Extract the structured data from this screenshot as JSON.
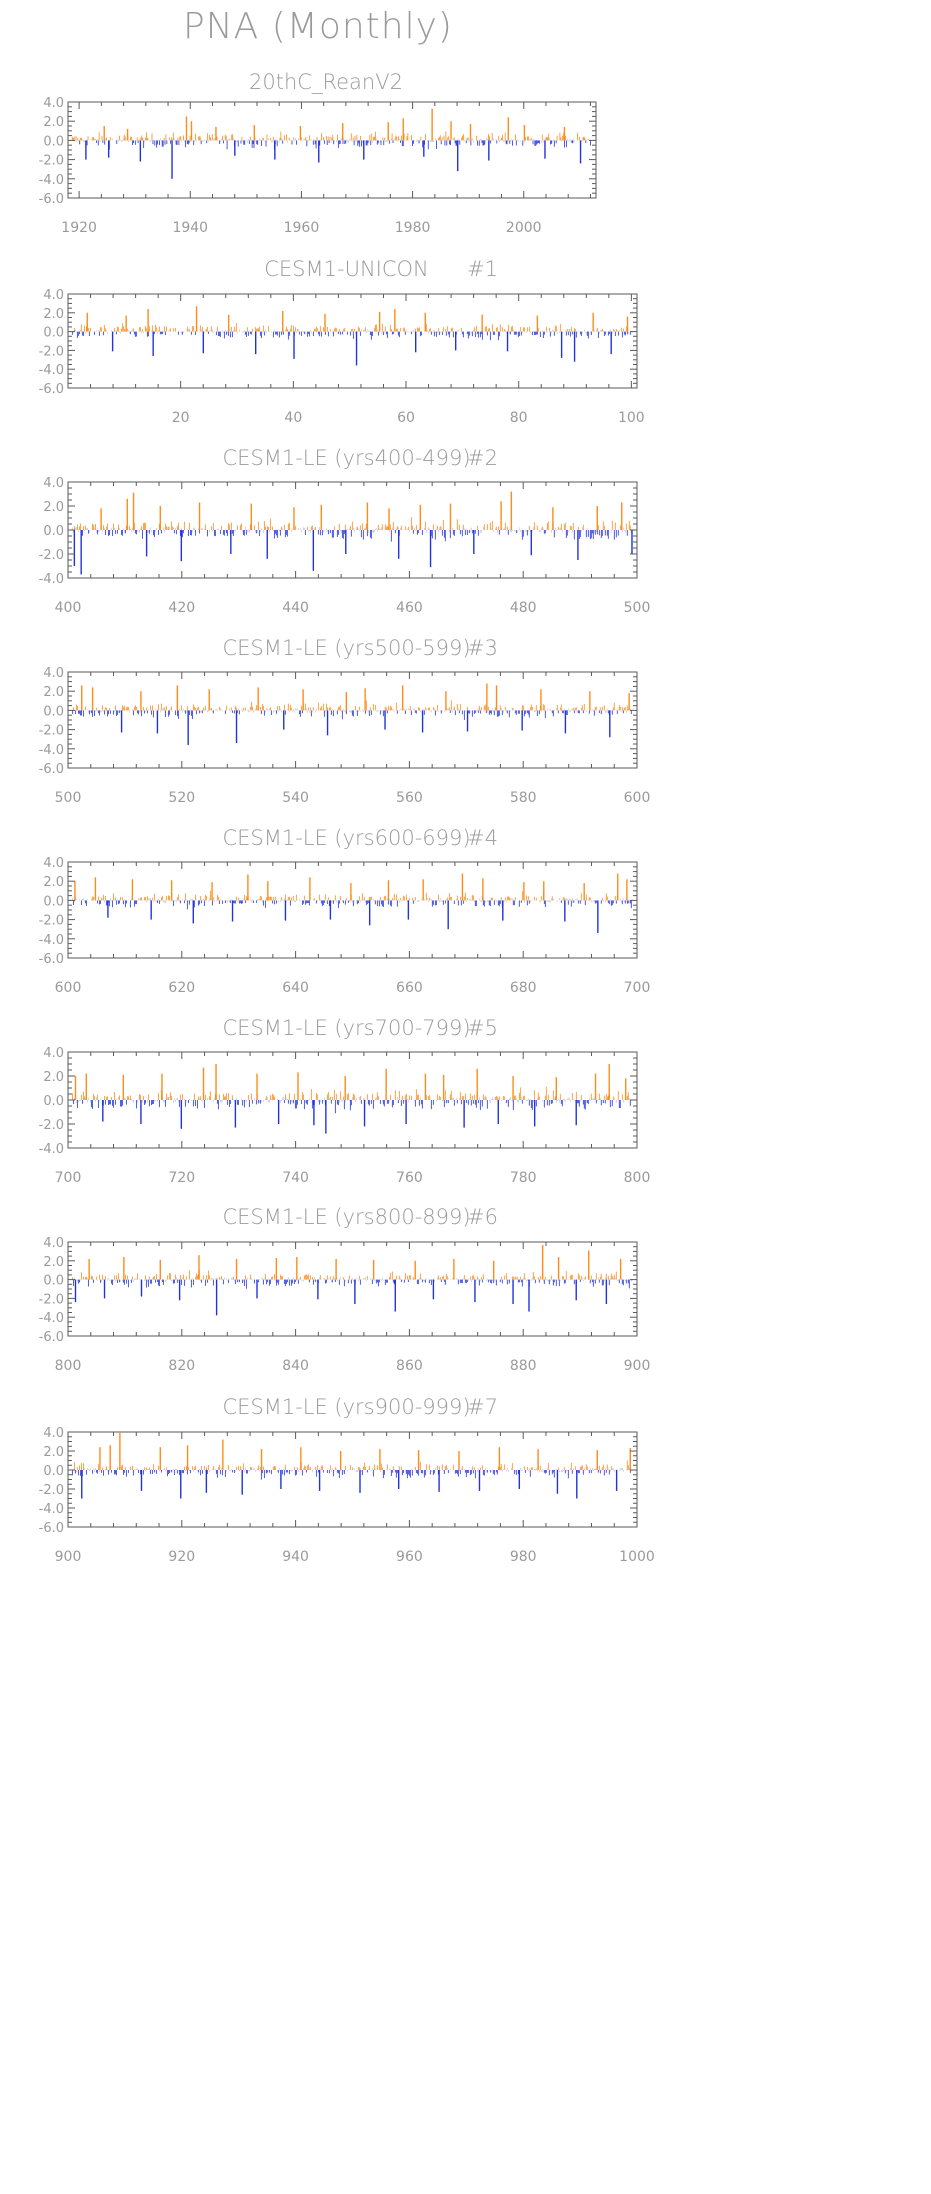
{
  "title": "PNA (Monthly)",
  "colors": {
    "positive": "#ff8c1a",
    "negative": "#2233dd",
    "weak": "#c8c8c8",
    "text": "#9a9a9a",
    "frame": "#5a5a5a"
  },
  "chart_data": [
    {
      "type": "bar",
      "title": "20thC_ReanV2",
      "ensemble_label": "",
      "xlim": [
        1918,
        2013
      ],
      "ylim": [
        -6.0,
        4.0
      ],
      "yticks": [
        "4.0",
        "2.0",
        "0.0",
        "-2.0",
        "-4.0",
        "-6.0"
      ],
      "xticks": [
        "1920",
        "1940",
        "1960",
        "1980",
        "2000"
      ],
      "series": [
        {
          "name": "",
          "x": [
            1921.2,
            1924.5,
            1925.3,
            1928.7,
            1931.0,
            1936.7,
            1939.3,
            1940.2,
            1944.6,
            1948.0,
            1951.5,
            1955.2,
            1959.8,
            1963.1,
            1967.4,
            1971.2,
            1975.6,
            1978.3,
            1982.0,
            1983.5,
            1986.9,
            1988.1,
            1990.4,
            1993.7,
            1997.2,
            2000.1,
            2003.8,
            2007.3,
            2010.2
          ],
          "values": [
            -2.0,
            1.5,
            -1.8,
            1.2,
            -2.2,
            -4.0,
            2.5,
            2.0,
            1.4,
            -1.6,
            1.6,
            -2.0,
            1.5,
            -2.3,
            1.8,
            -2.0,
            1.9,
            2.3,
            -1.7,
            3.3,
            2.0,
            -3.2,
            1.7,
            -2.1,
            2.4,
            1.6,
            -1.9,
            1.4,
            -2.4
          ]
        }
      ]
    },
    {
      "type": "bar",
      "title": "CESM1-UNICON",
      "ensemble_label": "#1",
      "xlim": [
        0,
        101
      ],
      "ylim": [
        -6.0,
        4.0
      ],
      "yticks": [
        "4.0",
        "2.0",
        "0.0",
        "-2.0",
        "-4.0",
        "-6.0"
      ],
      "xticks": [
        "20",
        "40",
        "60",
        "80",
        "100"
      ],
      "series": [
        {
          "name": "",
          "x": [
            3.4,
            7.9,
            10.3,
            14.2,
            15.1,
            22.8,
            24.0,
            28.5,
            33.3,
            38.1,
            40.1,
            45.6,
            51.2,
            55.3,
            58.0,
            61.7,
            63.4,
            68.8,
            73.5,
            78.0,
            83.3,
            87.6,
            89.9,
            93.2,
            96.4,
            99.3
          ],
          "values": [
            2.0,
            -2.1,
            1.7,
            2.4,
            -2.6,
            2.7,
            -2.3,
            1.8,
            -2.4,
            2.2,
            -2.9,
            1.9,
            -3.6,
            2.1,
            2.4,
            -2.2,
            2.0,
            -2.0,
            1.8,
            -2.1,
            1.7,
            -2.8,
            -3.2,
            2.0,
            -2.4,
            1.6
          ]
        }
      ]
    },
    {
      "type": "bar",
      "title": "CESM1-LE (yrs400-499)",
      "ensemble_label": "#2",
      "xlim": [
        400,
        500
      ],
      "ylim": [
        -4.0,
        4.0
      ],
      "yticks": [
        "4.0",
        "2.0",
        "0.0",
        "-2.0",
        "-4.0"
      ],
      "xticks": [
        "400",
        "420",
        "440",
        "460",
        "480",
        "500"
      ],
      "series": [
        {
          "name": "",
          "x": [
            401.1,
            402.3,
            405.8,
            410.4,
            411.5,
            413.8,
            416.2,
            419.9,
            423.1,
            428.6,
            432.2,
            435.0,
            439.7,
            443.1,
            444.5,
            448.8,
            452.6,
            456.4,
            458.1,
            461.9,
            463.7,
            467.2,
            471.3,
            476.1,
            477.9,
            481.4,
            485.2,
            489.6,
            493.0,
            497.3,
            499.1
          ],
          "values": [
            -3.0,
            -3.7,
            1.8,
            2.6,
            3.1,
            -2.2,
            2.0,
            -2.6,
            2.3,
            -2.0,
            2.2,
            -2.4,
            1.9,
            -3.4,
            2.1,
            -2.0,
            2.3,
            1.8,
            -2.4,
            2.1,
            -3.1,
            2.2,
            -2.0,
            2.4,
            3.2,
            -2.1,
            1.9,
            -2.5,
            2.0,
            2.3,
            -2.0
          ]
        }
      ]
    },
    {
      "type": "bar",
      "title": "CESM1-LE (yrs500-599)",
      "ensemble_label": "#3",
      "xlim": [
        500,
        600
      ],
      "ylim": [
        -6.0,
        4.0
      ],
      "yticks": [
        "4.0",
        "2.0",
        "0.0",
        "-2.0",
        "-4.0",
        "-6.0"
      ],
      "xticks": [
        "500",
        "520",
        "540",
        "560",
        "580",
        "600"
      ],
      "series": [
        {
          "name": "",
          "x": [
            502.4,
            504.3,
            509.4,
            512.8,
            515.7,
            519.2,
            521.1,
            524.8,
            529.6,
            533.4,
            537.9,
            541.3,
            545.6,
            548.9,
            552.2,
            555.7,
            558.8,
            562.3,
            566.4,
            570.2,
            573.6,
            575.3,
            579.8,
            583.1,
            587.4,
            591.7,
            595.2,
            598.6
          ],
          "values": [
            2.6,
            2.4,
            -2.3,
            2.0,
            -2.4,
            2.6,
            -3.6,
            2.2,
            -3.4,
            2.4,
            -2.0,
            2.2,
            -2.6,
            1.9,
            2.3,
            -2.0,
            2.6,
            -2.3,
            2.0,
            -2.2,
            2.8,
            2.6,
            -2.1,
            2.2,
            -2.4,
            2.0,
            -2.8,
            1.8
          ]
        }
      ]
    },
    {
      "type": "bar",
      "title": "CESM1-LE (yrs600-699)",
      "ensemble_label": "#4",
      "xlim": [
        600,
        700
      ],
      "ylim": [
        -6.0,
        4.0
      ],
      "yticks": [
        "4.0",
        "2.0",
        "0.0",
        "-2.0",
        "-4.0",
        "-6.0"
      ],
      "xticks": [
        "600",
        "620",
        "640",
        "660",
        "680",
        "700"
      ],
      "series": [
        {
          "name": "",
          "x": [
            601.2,
            604.8,
            607.0,
            611.3,
            614.6,
            618.2,
            622.0,
            625.3,
            628.9,
            631.6,
            635.1,
            638.2,
            642.5,
            646.1,
            649.7,
            653.0,
            656.3,
            659.8,
            662.4,
            666.8,
            669.3,
            672.9,
            676.4,
            680.1,
            683.6,
            687.3,
            690.7,
            693.1,
            696.6,
            698.2
          ],
          "values": [
            2.0,
            2.4,
            -1.8,
            2.2,
            -2.0,
            2.1,
            -2.4,
            1.9,
            -2.2,
            2.7,
            2.0,
            -2.1,
            2.4,
            -2.0,
            1.8,
            -2.6,
            2.1,
            -2.0,
            2.2,
            -3.0,
            2.8,
            2.3,
            -2.1,
            1.9,
            2.0,
            -2.2,
            1.8,
            -3.4,
            2.8,
            2.2
          ]
        }
      ]
    },
    {
      "type": "bar",
      "title": "CESM1-LE (yrs700-799)",
      "ensemble_label": "#5",
      "xlim": [
        700,
        800
      ],
      "ylim": [
        -4.0,
        4.0
      ],
      "yticks": [
        "4.0",
        "2.0",
        "0.0",
        "-2.0",
        "-4.0"
      ],
      "xticks": [
        "700",
        "720",
        "740",
        "760",
        "780",
        "800"
      ],
      "series": [
        {
          "name": "",
          "x": [
            701.3,
            703.2,
            706.1,
            709.7,
            712.8,
            716.5,
            719.9,
            723.8,
            726.0,
            729.4,
            733.2,
            737.0,
            740.4,
            743.2,
            745.3,
            748.7,
            752.1,
            755.9,
            759.4,
            762.8,
            766.0,
            769.6,
            771.9,
            775.6,
            778.2,
            782.0,
            785.8,
            789.3,
            792.7,
            795.1,
            798.0
          ],
          "values": [
            2.0,
            2.2,
            -1.8,
            2.1,
            -2.0,
            2.2,
            -2.4,
            2.7,
            3.0,
            -2.3,
            2.2,
            -2.0,
            2.3,
            -2.1,
            -2.8,
            2.0,
            -2.2,
            2.6,
            -2.0,
            2.2,
            2.1,
            -2.3,
            2.6,
            -2.0,
            2.0,
            -2.2,
            1.9,
            -2.1,
            2.2,
            3.0,
            1.8
          ]
        }
      ]
    },
    {
      "type": "bar",
      "title": "CESM1-LE (yrs800-899)",
      "ensemble_label": "#6",
      "xlim": [
        800,
        900
      ],
      "ylim": [
        -6.0,
        4.0
      ],
      "yticks": [
        "4.0",
        "2.0",
        "0.0",
        "-2.0",
        "-4.0",
        "-6.0"
      ],
      "xticks": [
        "800",
        "820",
        "840",
        "860",
        "880",
        "900"
      ],
      "series": [
        {
          "name": "",
          "x": [
            801.3,
            803.7,
            806.4,
            809.8,
            812.9,
            816.2,
            819.6,
            823.0,
            826.1,
            829.6,
            833.2,
            836.6,
            840.2,
            843.9,
            847.1,
            850.4,
            853.7,
            857.5,
            861.0,
            864.2,
            867.8,
            871.5,
            874.8,
            878.2,
            881.0,
            883.4,
            886.2,
            889.3,
            891.5,
            894.6,
            897.1
          ],
          "values": [
            -2.4,
            2.2,
            -2.0,
            2.4,
            -1.8,
            2.1,
            -2.2,
            2.6,
            -3.8,
            2.2,
            -2.0,
            2.3,
            2.4,
            -2.1,
            2.2,
            -2.6,
            2.1,
            -3.4,
            2.0,
            -2.1,
            2.2,
            -2.4,
            2.0,
            -2.6,
            -3.4,
            3.7,
            2.4,
            -2.2,
            3.1,
            -2.6,
            2.2
          ]
        }
      ]
    },
    {
      "type": "bar",
      "title": "CESM1-LE (yrs900-999)",
      "ensemble_label": "#7",
      "xlim": [
        900,
        1000
      ],
      "ylim": [
        -6.0,
        4.0
      ],
      "yticks": [
        "4.0",
        "2.0",
        "0.0",
        "-2.0",
        "-4.0",
        "-6.0"
      ],
      "xticks": [
        "900",
        "920",
        "940",
        "960",
        "980",
        "1000"
      ],
      "series": [
        {
          "name": "",
          "x": [
            902.4,
            905.6,
            907.4,
            909.1,
            912.9,
            916.2,
            919.8,
            921.0,
            924.3,
            927.2,
            930.6,
            934.0,
            937.4,
            940.9,
            944.2,
            947.9,
            951.3,
            954.8,
            958.1,
            961.6,
            965.2,
            968.7,
            972.3,
            975.8,
            979.3,
            982.6,
            986.0,
            989.4,
            993.0,
            996.4,
            998.8
          ],
          "values": [
            -3.0,
            2.4,
            2.6,
            3.9,
            -2.2,
            2.4,
            -3.0,
            2.6,
            -2.4,
            3.2,
            -2.6,
            2.2,
            -2.0,
            2.4,
            -2.2,
            2.0,
            -2.4,
            2.2,
            -2.0,
            2.1,
            -2.3,
            2.0,
            -2.2,
            2.4,
            -2.0,
            2.2,
            -2.5,
            -3.0,
            2.1,
            -2.2,
            2.3
          ]
        }
      ]
    }
  ]
}
